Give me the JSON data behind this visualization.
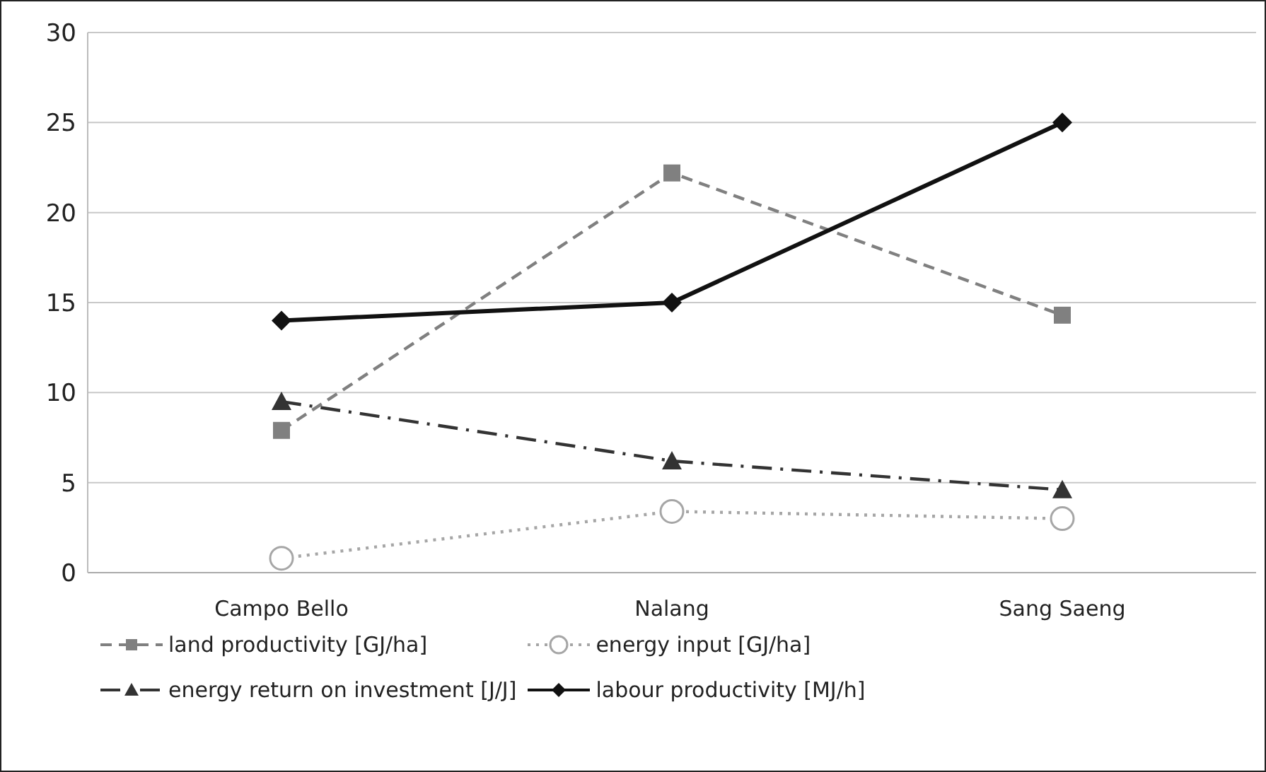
{
  "chart_data": {
    "type": "line",
    "categories": [
      "Campo Bello",
      "Nalang",
      "Sang Saeng"
    ],
    "series": [
      {
        "name": "land productivity [GJ/ha]",
        "color": "#808080",
        "values": [
          7.9,
          22.2,
          14.3
        ],
        "marker": "square",
        "line_style": "dashed"
      },
      {
        "name": "energy input [GJ/ha]",
        "color": "#a6a6a6",
        "values": [
          0.8,
          3.4,
          3.0
        ],
        "marker": "circle",
        "line_style": "dotted"
      },
      {
        "name": "energy return on investment [J/J]",
        "color": "#333333",
        "values": [
          9.5,
          6.2,
          4.6
        ],
        "marker": "triangle",
        "line_style": "dashdot"
      },
      {
        "name": "labour productivity [MJ/h]",
        "color": "#111111",
        "values": [
          14.0,
          15.0,
          25.0
        ],
        "marker": "diamond",
        "line_style": "solid"
      }
    ],
    "ylim": [
      0,
      30
    ],
    "yticks": [
      0,
      5,
      10,
      15,
      20,
      25,
      30
    ],
    "grid": "y",
    "legend": "bottom"
  }
}
